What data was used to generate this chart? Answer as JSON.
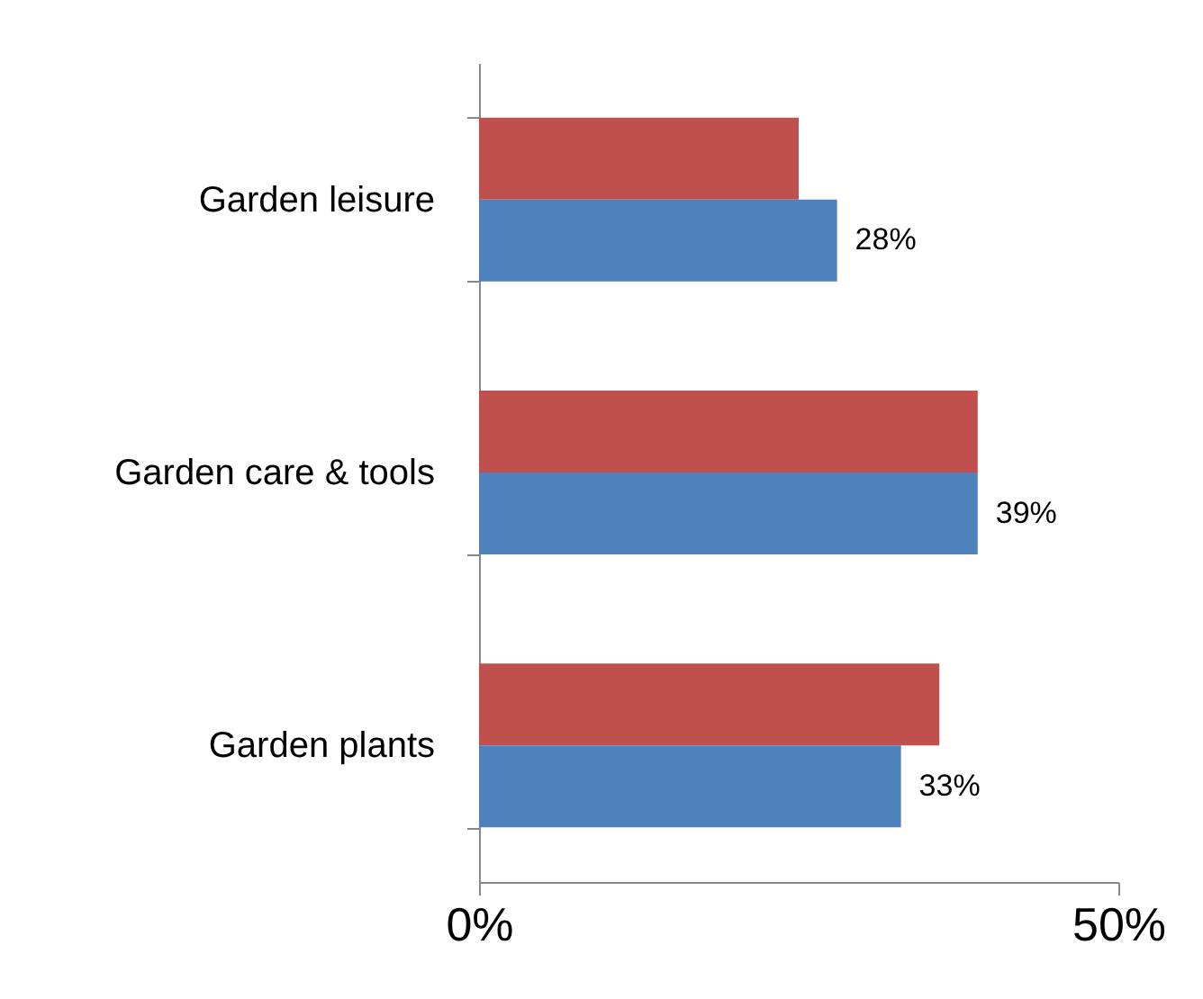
{
  "chart_data": {
    "type": "bar",
    "orientation": "horizontal",
    "categories": [
      "Garden leisure",
      "Garden care & tools",
      "Garden plants"
    ],
    "series": [
      {
        "color": "#c0504d",
        "values": [
          25,
          39,
          36
        ]
      },
      {
        "color": "#4f81bd",
        "values": [
          28,
          39,
          33
        ],
        "value_labels": [
          "28%",
          "39%",
          "33%"
        ]
      }
    ],
    "xlim": [
      0,
      50
    ],
    "xticks": [
      {
        "value": 0,
        "label": "0%"
      },
      {
        "value": 50,
        "label": "50%"
      }
    ],
    "grid": false,
    "legend": false
  }
}
